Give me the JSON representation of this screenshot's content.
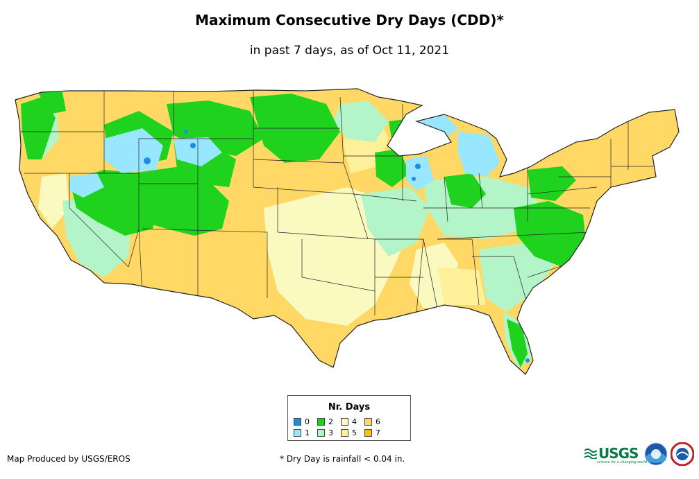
{
  "header": {
    "title": "Maximum Consecutive Dry Days (CDD)*",
    "subtitle": "in past 7 days, as of Oct 11, 2021"
  },
  "legend": {
    "title": "Nr. Days",
    "items": [
      {
        "label": "0",
        "color": "#1a8fe0"
      },
      {
        "label": "1",
        "color": "#99e6ff"
      },
      {
        "label": "2",
        "color": "#1ed21e"
      },
      {
        "label": "3",
        "color": "#b3f5c8"
      },
      {
        "label": "4",
        "color": "#fafac0"
      },
      {
        "label": "5",
        "color": "#fff09a"
      },
      {
        "label": "6",
        "color": "#ffd866"
      },
      {
        "label": "7",
        "color": "#ffc000"
      }
    ]
  },
  "footer": {
    "credit": "Map Produced by USGS/EROS",
    "note": "* Dry Day is rainfall < 0.04 in.",
    "usgs_logo": "USGS",
    "usgs_tagline": "science for a changing world"
  },
  "icons": [
    "usgs-logo-icon",
    "noaa-logo-icon",
    "nws-logo-icon"
  ]
}
